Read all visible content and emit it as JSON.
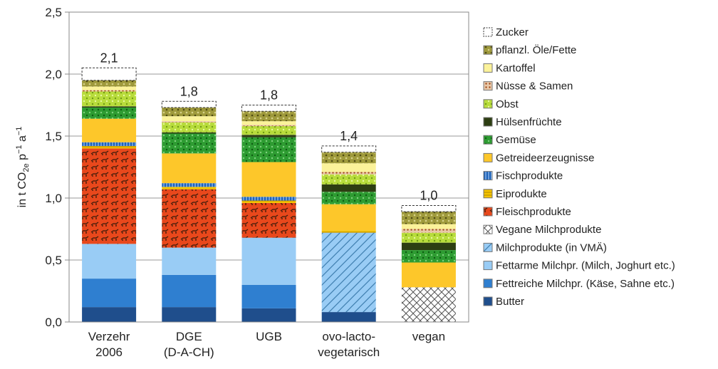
{
  "chart_data": {
    "type": "bar",
    "stacked": true,
    "title": "",
    "ylabel": "in t CO2e p−1 a−1",
    "ylabel_parts": {
      "main": "in t CO",
      "sub": "2e",
      "rest1": " p",
      "sup1": "−1",
      "rest2": " a",
      "sup2": "−1"
    },
    "ylim": [
      0,
      2.5
    ],
    "yticks": [
      0,
      0.5,
      1.0,
      1.5,
      2.0,
      2.5
    ],
    "ytick_labels": [
      "0,0",
      "0,5",
      "1,0",
      "1,5",
      "2,0",
      "2,5"
    ],
    "grid": true,
    "legend_position": "right",
    "categories": [
      {
        "lines": [
          "Verzehr",
          "2006"
        ]
      },
      {
        "lines": [
          "DGE",
          "(D-A-CH)"
        ]
      },
      {
        "lines": [
          "UGB"
        ]
      },
      {
        "lines": [
          "ovo-lacto-",
          "vegetarisch"
        ]
      },
      {
        "lines": [
          "vegan"
        ]
      }
    ],
    "totals": [
      "2,1",
      "1,8",
      "1,8",
      "1,4",
      "1,0"
    ],
    "series": [
      {
        "name": "Butter",
        "color": "#1f4e8c",
        "pattern": "solid",
        "values": [
          0.12,
          0.12,
          0.11,
          0.08,
          0
        ]
      },
      {
        "name": "Fettreiche Milchpr. (Käse, Sahne etc.)",
        "color": "#2f7fd0",
        "pattern": "solid",
        "values": [
          0.23,
          0.26,
          0.19,
          0,
          0
        ]
      },
      {
        "name": "Fettarme Milchpr. (Milch, Joghurt etc.)",
        "color": "#99ccf5",
        "pattern": "solid",
        "values": [
          0.28,
          0.22,
          0.38,
          0,
          0
        ]
      },
      {
        "name": "Milchprodukte (in VMÄ)",
        "color": "#99ccf5",
        "pattern": "diag",
        "values": [
          0,
          0,
          0,
          0.64,
          0
        ]
      },
      {
        "name": "Vegane Milchprodukte",
        "color": "#ffffff",
        "pattern": "cross",
        "values": [
          0,
          0,
          0,
          0,
          0.28
        ]
      },
      {
        "name": "Fleischprodukte",
        "color": "#e8481c",
        "pattern": "animal",
        "values": [
          0.77,
          0.47,
          0.28,
          0,
          0
        ]
      },
      {
        "name": "Eiprodukte",
        "color": "#f5c400",
        "pattern": "hline",
        "values": [
          0.02,
          0.02,
          0.02,
          0.02,
          0
        ]
      },
      {
        "name": "Fischprodukte",
        "color": "#1f63b8",
        "pattern": "vline",
        "values": [
          0.03,
          0.03,
          0.03,
          0,
          0
        ]
      },
      {
        "name": "Getreideerzeugnisse",
        "color": "#fdc72a",
        "pattern": "solid",
        "values": [
          0.19,
          0.24,
          0.28,
          0.21,
          0.2
        ]
      },
      {
        "name": "Gemüse",
        "color": "#2e9c32",
        "pattern": "dots",
        "values": [
          0.09,
          0.16,
          0.2,
          0.1,
          0.1
        ]
      },
      {
        "name": "Hülsenfrüchte",
        "color": "#2d3e12",
        "pattern": "solid",
        "values": [
          0.01,
          0.01,
          0.02,
          0.06,
          0.06
        ]
      },
      {
        "name": "Obst",
        "color": "#b8dc3c",
        "pattern": "dots",
        "values": [
          0.12,
          0.08,
          0.07,
          0.08,
          0.08
        ]
      },
      {
        "name": "Nüsse & Samen",
        "color": "#c8602c",
        "pattern": "dotsmall",
        "values": [
          0.01,
          0.01,
          0.01,
          0.02,
          0.03
        ]
      },
      {
        "name": "Kartoffel",
        "color": "#fbf29a",
        "pattern": "solid",
        "values": [
          0.03,
          0.04,
          0.03,
          0.07,
          0.04
        ]
      },
      {
        "name": "pflanzl. Öle/Fette",
        "color": "#9f9a3c",
        "pattern": "dots",
        "values": [
          0.05,
          0.07,
          0.08,
          0.09,
          0.1
        ]
      },
      {
        "name": "Zucker",
        "color": "#ffffff",
        "pattern": "dashed",
        "values": [
          0.1,
          0.05,
          0.05,
          0.05,
          0.05
        ]
      }
    ]
  }
}
